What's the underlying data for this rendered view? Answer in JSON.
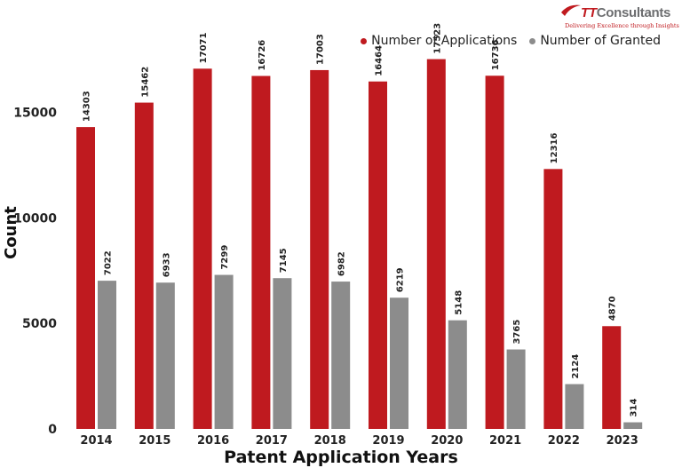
{
  "logo": {
    "brand_prefix": "TT",
    "brand_rest": "Consultants",
    "tagline": "Delivering Excellence through Insights"
  },
  "colors": {
    "applications": "#bf1a1f",
    "granted": "#8c8c8c",
    "axis_text": "#222222"
  },
  "chart_data": {
    "type": "bar",
    "title": "",
    "xlabel": "Patent Application Years",
    "ylabel": "Count",
    "ylim": [
      0,
      17800
    ],
    "yticks": [
      0,
      5000,
      10000,
      15000
    ],
    "grid": false,
    "legend_position": "top-right",
    "categories": [
      "2014",
      "2015",
      "2016",
      "2017",
      "2018",
      "2019",
      "2020",
      "2021",
      "2022",
      "2023"
    ],
    "series": [
      {
        "name": "Number of Applications",
        "color": "#bf1a1f",
        "values": [
          14303,
          15462,
          17071,
          16726,
          17003,
          16464,
          17523,
          16736,
          12316,
          4870
        ]
      },
      {
        "name": "Number of Granted",
        "color": "#8c8c8c",
        "values": [
          7022,
          6933,
          7299,
          7145,
          6982,
          6219,
          5148,
          3765,
          2124,
          314
        ]
      }
    ]
  }
}
